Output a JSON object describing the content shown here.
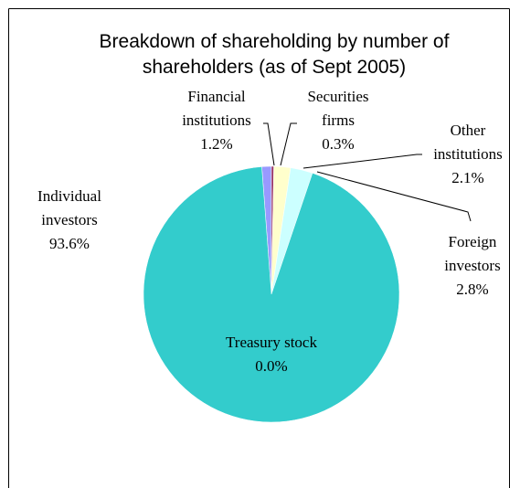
{
  "chart_data": {
    "type": "pie",
    "title": "Breakdown of shareholding by number of shareholders (as of Sept 2005)",
    "categories": [
      "Financial institutions",
      "Securities firms",
      "Other institutions",
      "Foreign investors",
      "Individual investors",
      "Treasury stock"
    ],
    "values": [
      1.2,
      0.3,
      2.1,
      2.8,
      93.6,
      0.0
    ],
    "value_labels": [
      "1.2%",
      "0.3%",
      "2.1%",
      "2.8%",
      "93.6%",
      "0.0%"
    ],
    "colors": [
      "#9999ff",
      "#993366",
      "#ffffcc",
      "#ccffff",
      "#33cccc",
      "#660066"
    ]
  }
}
